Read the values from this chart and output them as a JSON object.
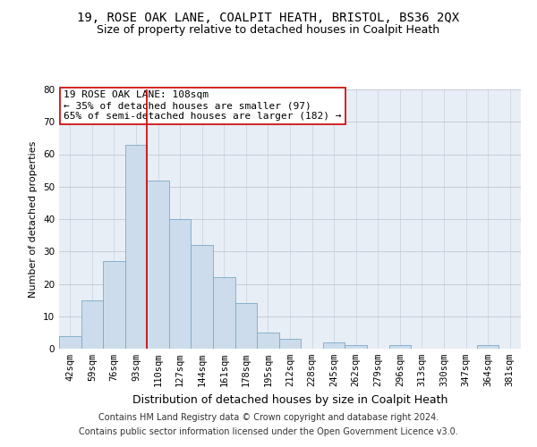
{
  "title1": "19, ROSE OAK LANE, COALPIT HEATH, BRISTOL, BS36 2QX",
  "title2": "Size of property relative to detached houses in Coalpit Heath",
  "xlabel": "Distribution of detached houses by size in Coalpit Heath",
  "ylabel": "Number of detached properties",
  "footer1": "Contains HM Land Registry data © Crown copyright and database right 2024.",
  "footer2": "Contains public sector information licensed under the Open Government Licence v3.0.",
  "bins": [
    "42sqm",
    "59sqm",
    "76sqm",
    "93sqm",
    "110sqm",
    "127sqm",
    "144sqm",
    "161sqm",
    "178sqm",
    "195sqm",
    "212sqm",
    "228sqm",
    "245sqm",
    "262sqm",
    "279sqm",
    "296sqm",
    "313sqm",
    "330sqm",
    "347sqm",
    "364sqm",
    "381sqm"
  ],
  "values": [
    4,
    15,
    27,
    63,
    52,
    40,
    32,
    22,
    14,
    5,
    3,
    0,
    2,
    1,
    0,
    1,
    0,
    0,
    0,
    1,
    0
  ],
  "bar_color": "#ccdcec",
  "bar_edge_color": "#7aaac8",
  "vline_color": "#cc0000",
  "annotation_box_color": "#cc0000",
  "annotation_box_text": "19 ROSE OAK LANE: 108sqm\n← 35% of detached houses are smaller (97)\n65% of semi-detached houses are larger (182) →",
  "ylim": [
    0,
    80
  ],
  "yticks": [
    0,
    10,
    20,
    30,
    40,
    50,
    60,
    70,
    80
  ],
  "grid_color": "#c0c8d8",
  "bg_color": "#e8eef5",
  "title1_fontsize": 10,
  "title2_fontsize": 9,
  "xlabel_fontsize": 9,
  "ylabel_fontsize": 8,
  "tick_fontsize": 7.5,
  "annotation_fontsize": 8,
  "footer_fontsize": 7
}
